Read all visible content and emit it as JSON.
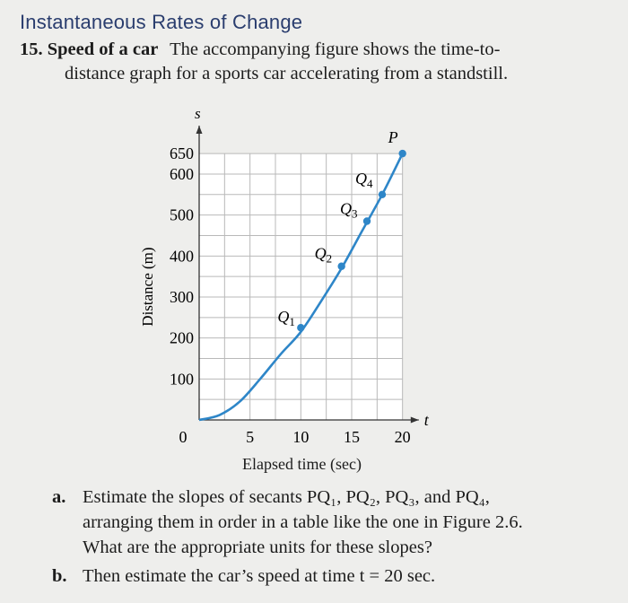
{
  "header": {
    "section_title": "Instantaneous Rates of Change"
  },
  "problem": {
    "number": "15.",
    "title": "Speed of a car",
    "statement_line1": "The accompanying figure shows the time-to-",
    "statement_line2": "distance graph for a sports car accelerating from a standstill."
  },
  "chart_data": {
    "type": "line",
    "xlabel": "Elapsed time (sec)",
    "ylabel": "Distance (m)",
    "x_axis_letter": "t",
    "y_axis_letter": "s",
    "x_ticks": [
      "0",
      "5",
      "10",
      "15",
      "20"
    ],
    "y_ticks": [
      "100",
      "200",
      "300",
      "400",
      "500",
      "600",
      "650"
    ],
    "xlim": [
      0,
      21
    ],
    "ylim": [
      0,
      670
    ],
    "grid": true,
    "series": [
      {
        "x": [
          0,
          2,
          4,
          6,
          8,
          10,
          12,
          14,
          16,
          18,
          20
        ],
        "y": [
          0,
          12,
          45,
          100,
          160,
          215,
          290,
          370,
          460,
          550,
          650
        ]
      }
    ],
    "points": [
      {
        "label": "Q",
        "sub": "1",
        "x": 10,
        "y": 225
      },
      {
        "label": "Q",
        "sub": "2",
        "x": 14,
        "y": 375
      },
      {
        "label": "Q",
        "sub": "3",
        "x": 16.5,
        "y": 485
      },
      {
        "label": "Q",
        "sub": "4",
        "x": 18,
        "y": 550
      },
      {
        "label": "P",
        "sub": "",
        "x": 20,
        "y": 650
      }
    ],
    "line_color": "#2e86c8",
    "point_color": "#2e86c8"
  },
  "questions": {
    "a_letter": "a.",
    "a_line1": "Estimate the slopes of secants PQ₁, PQ₂, PQ₃, and PQ₄,",
    "a_line2": "arranging them in order in a table like the one in Figure 2.6.",
    "a_line3": "What are the appropriate units for these slopes?",
    "b_letter": "b.",
    "b_line1": "Then estimate the car’s speed at time t = 20 sec."
  }
}
